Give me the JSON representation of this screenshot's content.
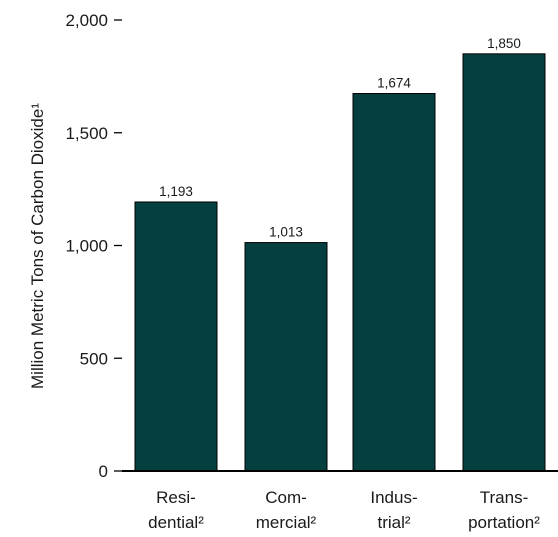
{
  "chart_data": {
    "type": "bar",
    "categories": [
      [
        "Resi-",
        "dential²"
      ],
      [
        "Com-",
        "mercial²"
      ],
      [
        "Indus-",
        "trial²"
      ],
      [
        "Trans-",
        "portation²"
      ]
    ],
    "values": [
      1193,
      1013,
      1674,
      1850
    ],
    "data_labels": [
      "1,193",
      "1,013",
      "1,674",
      "1,850"
    ],
    "ylabel": "Million Metric Tons of Carbon Dioxide¹",
    "xlabel": "",
    "title": "",
    "ylim": [
      0,
      2000
    ],
    "yticks": [
      0,
      500,
      1000,
      1500,
      2000
    ],
    "ytick_labels": [
      "0",
      "500",
      "1,000",
      "1,500",
      "2,000"
    ],
    "bar_color": "#063f3f",
    "grid": false,
    "legend": "none"
  }
}
